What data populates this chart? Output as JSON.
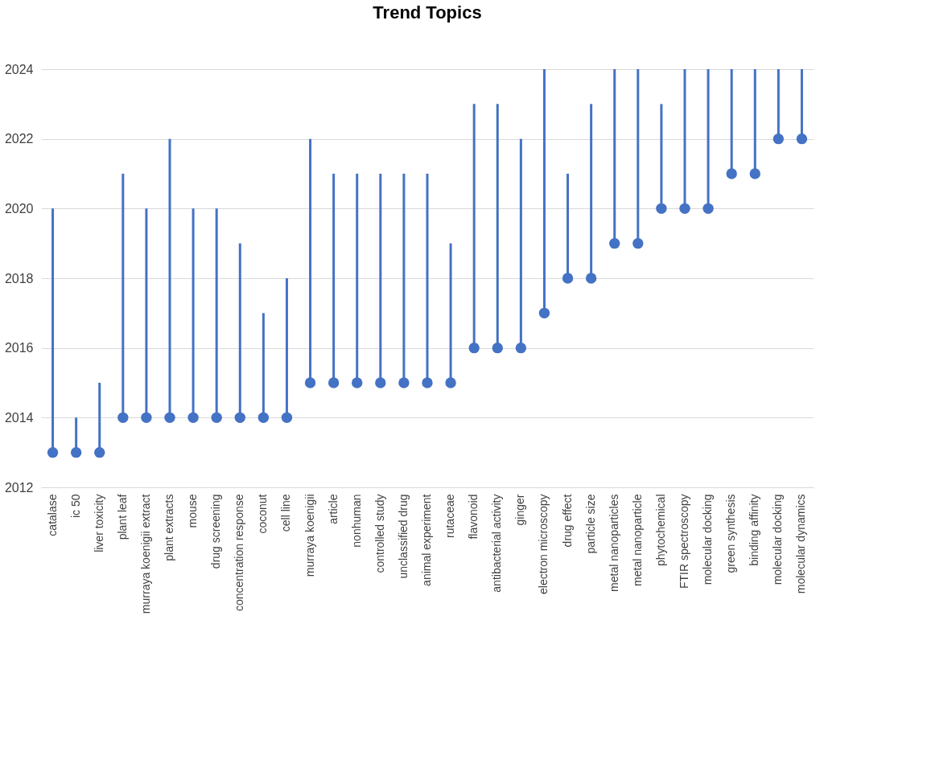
{
  "chart_data": {
    "type": "bar",
    "title": "Trend Topics",
    "categories": [
      "catalase",
      "ic 50",
      "liver toxicity",
      "plant leaf",
      "murraya koenigii extract",
      "plant extracts",
      "mouse",
      "drug screening",
      "concentration response",
      "coconut",
      "cell line",
      "murraya koenigii",
      "article",
      "nonhuman",
      "controlled study",
      "unclassified drug",
      "animal experiment",
      "rutaceae",
      "flavonoid",
      "antibacterial activity",
      "ginger",
      "electron microscopy",
      "drug effect",
      "particle size",
      "metal nanoparticles",
      "metal nanoparticle",
      "phytochemical",
      "FTIR spectroscopy",
      "molecular docking",
      "green synthesis",
      "binding affinity",
      "molecular docking",
      "molecular dynamics"
    ],
    "series": [
      {
        "base": [
          2013,
          2013,
          2013,
          2014,
          2014,
          2014,
          2014,
          2014,
          2014,
          2014,
          2014,
          2015,
          2015,
          2015,
          2015,
          2015,
          2015,
          2015,
          2016,
          2016,
          2016,
          2017,
          2018,
          2018,
          2019,
          2019,
          2020,
          2020,
          2020,
          2021,
          2021,
          2022,
          2022
        ],
        "color": "#4472c4",
        "values": [
          7,
          1,
          2,
          7,
          6,
          8,
          6,
          6,
          5,
          3,
          4,
          7,
          6,
          6,
          6,
          6,
          6,
          4,
          7,
          7,
          6,
          7,
          3,
          5,
          5,
          5,
          3,
          4,
          4,
          3,
          3,
          2,
          2
        ]
      },
      {
        "type": "scatter",
        "color": "#4472c4",
        "marker": "circle",
        "values": [
          2013,
          2013,
          2013,
          2014,
          2014,
          2014,
          2014,
          2014,
          2014,
          2014,
          2014,
          2015,
          2015,
          2015,
          2015,
          2015,
          2015,
          2015,
          2016,
          2016,
          2016,
          2017,
          2018,
          2018,
          2019,
          2019,
          2020,
          2020,
          2020,
          2021,
          2021,
          2022,
          2022
        ]
      }
    ],
    "ylim": [
      2012,
      2024
    ],
    "yticks": [
      2012,
      2014,
      2016,
      2018,
      2020,
      2022,
      2024
    ],
    "grid": "y"
  }
}
